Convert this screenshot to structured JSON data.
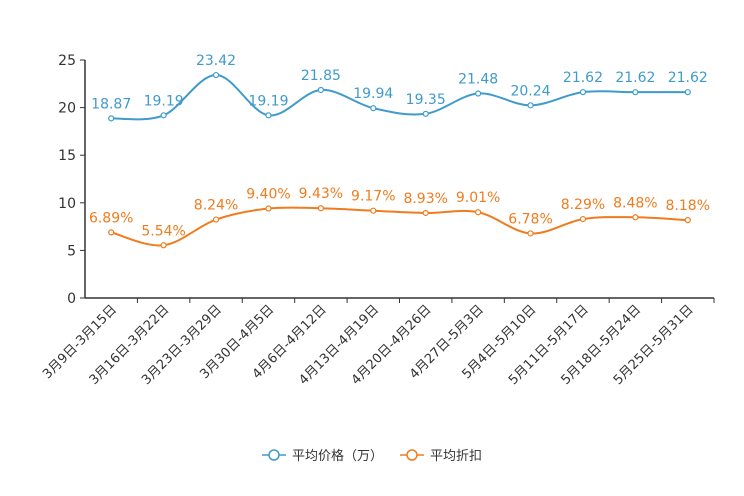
{
  "chart_data": {
    "type": "line",
    "title": "",
    "xlabel": "",
    "ylabel": "",
    "ylim": [
      0,
      25
    ],
    "yticks": [
      0,
      5,
      10,
      15,
      20,
      25
    ],
    "legend_position": "bottom-center",
    "categories": [
      "3月9日-3月15日",
      "3月16日-3月22日",
      "3月23日-3月29日",
      "3月30日-4月5日",
      "4月6日-4月12日",
      "4月13日-4月19日",
      "4月20日-4月26日",
      "4月27日-5月3日",
      "5月4日-5月10日",
      "5月11日-5月17日",
      "5月18日-5月24日",
      "5月25日-5月31日"
    ],
    "series": [
      {
        "name": "平均价格（万）",
        "color": "#3f9bcb",
        "values": [
          18.87,
          19.19,
          23.42,
          19.19,
          21.85,
          19.94,
          19.35,
          21.48,
          20.24,
          21.62,
          21.62,
          21.62
        ],
        "labels": [
          "18.87",
          "19.19",
          "23.42",
          "19.19",
          "21.85",
          "19.94",
          "19.35",
          "21.48",
          "20.24",
          "21.62",
          "21.62",
          "21.62"
        ]
      },
      {
        "name": "平均折扣",
        "color": "#f07c1e",
        "values": [
          6.89,
          5.54,
          8.24,
          9.4,
          9.43,
          9.17,
          8.93,
          9.01,
          6.78,
          8.29,
          8.48,
          8.18
        ],
        "labels": [
          "6.89%",
          "5.54%",
          "8.24%",
          "9.40%",
          "9.43%",
          "9.17%",
          "8.93%",
          "9.01%",
          "6.78%",
          "8.29%",
          "8.48%",
          "8.18%"
        ]
      }
    ]
  }
}
